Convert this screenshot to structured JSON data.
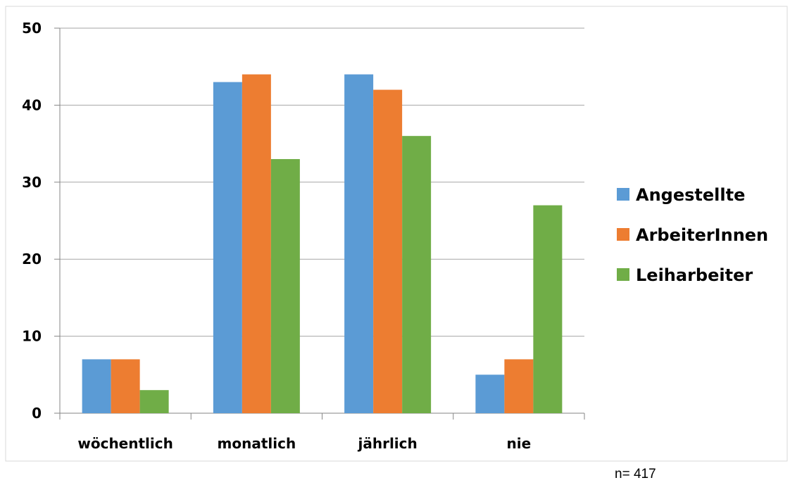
{
  "chart_data": {
    "type": "bar",
    "categories": [
      "wöchentlich",
      "monatlich",
      "jährlich",
      "nie"
    ],
    "series": [
      {
        "name": "Angestellte",
        "color": "#5B9BD5",
        "values": [
          7,
          43,
          44,
          5
        ]
      },
      {
        "name": "ArbeiterInnen",
        "color": "#ED7D31",
        "values": [
          7,
          44,
          42,
          7
        ]
      },
      {
        "name": "Leiharbeiter",
        "color": "#70AD47",
        "values": [
          3,
          33,
          36,
          27
        ]
      }
    ],
    "ylim": [
      0,
      50
    ],
    "yticks": [
      0,
      10,
      20,
      30,
      40,
      50
    ],
    "grid": true,
    "legend": "right",
    "title": "",
    "xlabel": "",
    "ylabel": ""
  },
  "note": "n= 417"
}
